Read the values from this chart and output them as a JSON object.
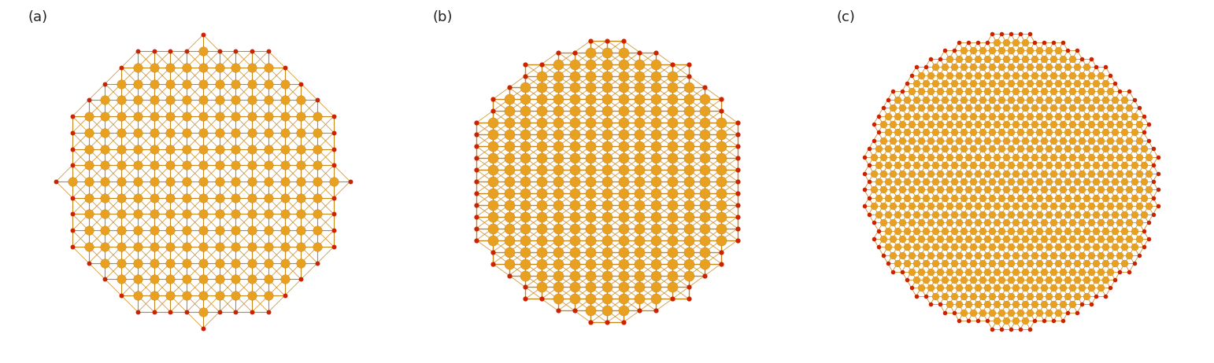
{
  "background_color": "#ffffff",
  "cu_color": "#E8A020",
  "o_color": "#CC2200",
  "bond_color": "#C8881A",
  "label_color": "#222222",
  "label_fontsize": 13,
  "panels": [
    "(a)",
    "(b)",
    "(c)"
  ]
}
